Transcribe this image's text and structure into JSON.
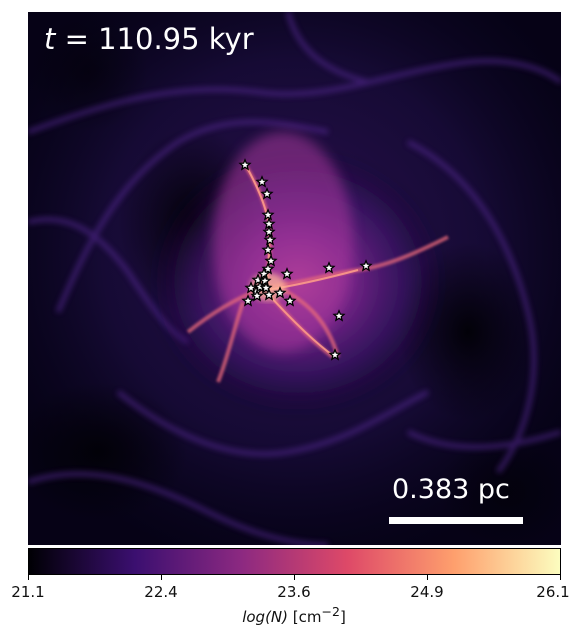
{
  "time_label": {
    "symbol": "t",
    "value": "= 110.95 kyr"
  },
  "scale_bar": {
    "label": "0.383 pc"
  },
  "colorbar": {
    "label_quantity": "log(N)",
    "label_unit": "[cm",
    "label_exp": "−2",
    "label_close": "]",
    "min": 21.1,
    "max": 26.1,
    "ticks": [
      "21.1",
      "22.4",
      "23.6",
      "24.9",
      "26.1"
    ],
    "colormap": [
      "#000004",
      "#3b0f70",
      "#8c2981",
      "#de4968",
      "#fe9f6d",
      "#fcfdbf"
    ]
  },
  "colors": {
    "background": "#050214",
    "filament": "#7a2ec0",
    "hot": "#f07a6a",
    "core": "#ffc9a0",
    "star_fill": "#ffffff",
    "star_stroke": "#000000"
  },
  "stars": {
    "count": 27,
    "color": "white"
  }
}
